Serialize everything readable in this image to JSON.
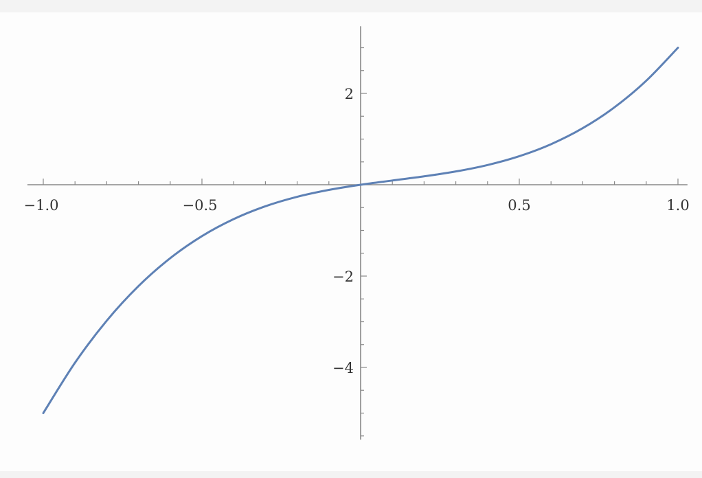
{
  "chart_data": {
    "type": "line",
    "title": "",
    "xlabel": "",
    "ylabel": "",
    "xlim": [
      -1.05,
      1.03
    ],
    "ylim": [
      -5.58,
      3.47
    ],
    "grid": false,
    "x_ticks": [
      -1.0,
      -0.5,
      0.5,
      1.0
    ],
    "x_tick_labels": [
      "−1.0",
      "−0.5",
      "0.5",
      "1.0"
    ],
    "y_ticks": [
      -4,
      -2,
      2
    ],
    "y_tick_labels": [
      "−4",
      "−2",
      "2"
    ],
    "x_minor_step": 0.1,
    "y_minor_step": 0.5,
    "line_color": "#5e81b5",
    "axis_color": "#888888",
    "series": [
      {
        "x": [
          -1.0,
          -0.9,
          -0.8,
          -0.7,
          -0.6,
          -0.5,
          -0.4,
          -0.3,
          -0.2,
          -0.1,
          0.0,
          0.1,
          0.2,
          0.3,
          0.4,
          0.5,
          0.6,
          0.7,
          0.8,
          0.9,
          1.0
        ],
        "y": [
          -5.0,
          -3.897,
          -2.976,
          -2.219,
          -1.608,
          -1.125,
          -0.752,
          -0.471,
          -0.264,
          -0.113,
          0.0,
          0.093,
          0.184,
          0.291,
          0.432,
          0.625,
          0.888,
          1.239,
          1.696,
          2.277,
          3.0
        ]
      }
    ]
  }
}
